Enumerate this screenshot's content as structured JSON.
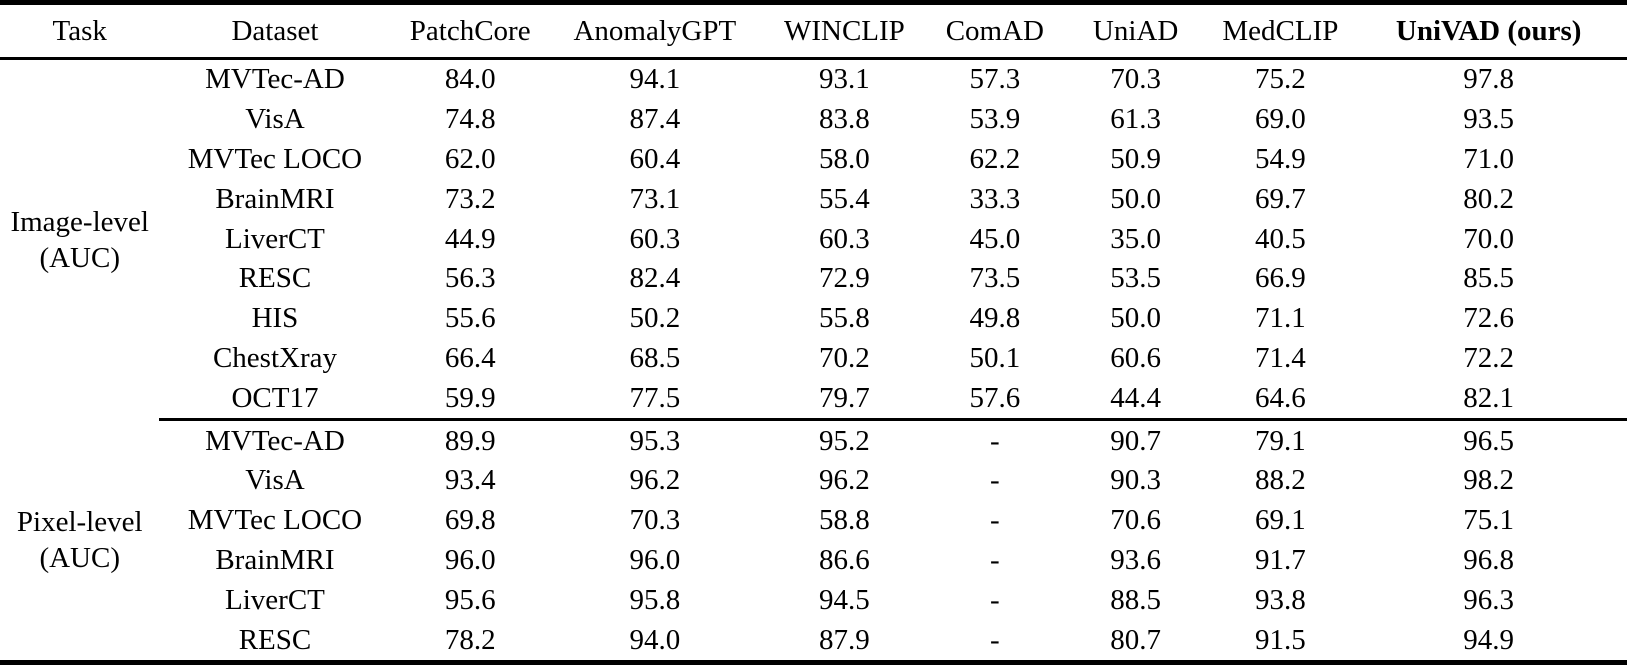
{
  "colors": {
    "text": "#000000",
    "background": "#ffffff",
    "rule": "#000000"
  },
  "table": {
    "columns": [
      {
        "label": "Task",
        "bold": false
      },
      {
        "label": "Dataset",
        "bold": false
      },
      {
        "label": "PatchCore",
        "bold": false
      },
      {
        "label": "AnomalyGPT",
        "bold": false
      },
      {
        "label": "WINCLIP",
        "bold": false
      },
      {
        "label": "ComAD",
        "bold": false
      },
      {
        "label": "UniAD",
        "bold": false
      },
      {
        "label": "MedCLIP",
        "bold": false
      },
      {
        "label": "UniVAD (ours)",
        "bold": true
      }
    ],
    "col_widths_percent": [
      9.8,
      14.2,
      9.8,
      12.9,
      10.4,
      8.1,
      9.2,
      8.6,
      17.0
    ],
    "sections": [
      {
        "task_lines": [
          "Image-level",
          "(AUC)"
        ],
        "rows": [
          {
            "dataset": "MVTec-AD",
            "values": [
              "84.0",
              "94.1",
              "93.1",
              "57.3",
              "70.3",
              "75.2",
              "97.8"
            ]
          },
          {
            "dataset": "VisA",
            "values": [
              "74.8",
              "87.4",
              "83.8",
              "53.9",
              "61.3",
              "69.0",
              "93.5"
            ]
          },
          {
            "dataset": "MVTec LOCO",
            "values": [
              "62.0",
              "60.4",
              "58.0",
              "62.2",
              "50.9",
              "54.9",
              "71.0"
            ]
          },
          {
            "dataset": "BrainMRI",
            "values": [
              "73.2",
              "73.1",
              "55.4",
              "33.3",
              "50.0",
              "69.7",
              "80.2"
            ]
          },
          {
            "dataset": "LiverCT",
            "values": [
              "44.9",
              "60.3",
              "60.3",
              "45.0",
              "35.0",
              "40.5",
              "70.0"
            ]
          },
          {
            "dataset": "RESC",
            "values": [
              "56.3",
              "82.4",
              "72.9",
              "73.5",
              "53.5",
              "66.9",
              "85.5"
            ]
          },
          {
            "dataset": "HIS",
            "values": [
              "55.6",
              "50.2",
              "55.8",
              "49.8",
              "50.0",
              "71.1",
              "72.6"
            ]
          },
          {
            "dataset": "ChestXray",
            "values": [
              "66.4",
              "68.5",
              "70.2",
              "50.1",
              "60.6",
              "71.4",
              "72.2"
            ]
          },
          {
            "dataset": "OCT17",
            "values": [
              "59.9",
              "77.5",
              "79.7",
              "57.6",
              "44.4",
              "64.6",
              "82.1"
            ]
          }
        ]
      },
      {
        "task_lines": [
          "Pixel-level",
          "(AUC)"
        ],
        "rows": [
          {
            "dataset": "MVTec-AD",
            "values": [
              "89.9",
              "95.3",
              "95.2",
              "-",
              "90.7",
              "79.1",
              "96.5"
            ]
          },
          {
            "dataset": "VisA",
            "values": [
              "93.4",
              "96.2",
              "96.2",
              "-",
              "90.3",
              "88.2",
              "98.2"
            ]
          },
          {
            "dataset": "MVTec LOCO",
            "values": [
              "69.8",
              "70.3",
              "58.8",
              "-",
              "70.6",
              "69.1",
              "75.1"
            ]
          },
          {
            "dataset": "BrainMRI",
            "values": [
              "96.0",
              "96.0",
              "86.6",
              "-",
              "93.6",
              "91.7",
              "96.8"
            ]
          },
          {
            "dataset": "LiverCT",
            "values": [
              "95.6",
              "95.8",
              "94.5",
              "-",
              "88.5",
              "93.8",
              "96.3"
            ]
          },
          {
            "dataset": "RESC",
            "values": [
              "78.2",
              "94.0",
              "87.9",
              "-",
              "80.7",
              "91.5",
              "94.9"
            ]
          }
        ]
      }
    ]
  }
}
